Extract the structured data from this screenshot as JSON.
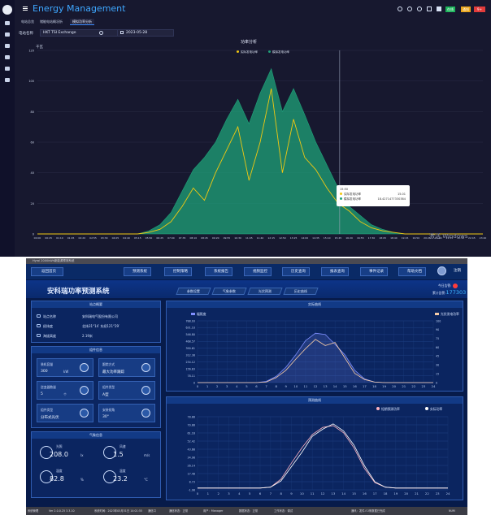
{
  "top": {
    "app_title": "Energy Management",
    "tabs": [
      "电站总览",
      "储能电站概况析",
      "模拟功率分析"
    ],
    "filter_label": "电站名称",
    "station_value": "HKT TSI Exchange",
    "date_value": "2023-05-28",
    "chart_title": "功率分析",
    "y_unit": "千瓦",
    "legend": [
      "实际发电功率",
      "模拟发电功率"
    ],
    "tooltip": {
      "time": "15:50",
      "rows": [
        {
          "label": "实际发电功率",
          "value": "15.01"
        },
        {
          "label": "模拟发电功率",
          "value": "18.4271477330384"
        }
      ]
    },
    "watermark": "激活 Windows",
    "badges": [
      "在线",
      "通知",
      "9+"
    ]
  },
  "chart_data": [
    {
      "type": "area",
      "title": "功率分析",
      "xlabel": "",
      "ylabel": "千瓦",
      "ylim": [
        0,
        120
      ],
      "yticks": [
        "120",
        "100",
        "80",
        "60",
        "40",
        "20",
        "0"
      ],
      "x": [
        "00:00",
        "00:25",
        "01:10",
        "01:45",
        "02:20",
        "02:55",
        "03:30",
        "04:05",
        "04:40",
        "05:15",
        "05:50",
        "06:25",
        "07:00",
        "07:35",
        "08:10",
        "08:45",
        "09:20",
        "09:55",
        "10:30",
        "11:05",
        "11:40",
        "12:15",
        "12:50",
        "13:25",
        "14:00",
        "14:35",
        "15:10",
        "15:45",
        "16:20",
        "16:55",
        "17:30",
        "18:05",
        "18:40",
        "19:15",
        "19:50",
        "20:25",
        "21:00",
        "21:35",
        "22:10",
        "22:45",
        "23:20"
      ],
      "series": [
        {
          "name": "实际发电功率",
          "color": "#f2c811",
          "values": [
            0,
            0,
            0,
            0,
            0,
            0,
            0,
            0,
            0,
            0,
            1,
            3,
            8,
            18,
            30,
            22,
            40,
            55,
            70,
            35,
            60,
            95,
            40,
            75,
            50,
            42,
            30,
            20,
            15,
            8,
            4,
            2,
            1,
            0,
            0,
            0,
            0,
            0,
            0,
            0,
            0
          ]
        },
        {
          "name": "模拟发电功率",
          "color": "#1fa37a",
          "values": [
            0,
            0,
            0,
            0,
            0,
            0,
            0,
            0,
            0,
            0,
            2,
            6,
            14,
            28,
            42,
            50,
            60,
            75,
            88,
            72,
            92,
            108,
            80,
            95,
            78,
            60,
            45,
            30,
            18,
            12,
            6,
            3,
            1,
            0,
            0,
            0,
            0,
            0,
            0,
            0,
            0
          ]
        }
      ],
      "tooltip_x": "15:50"
    },
    {
      "type": "line",
      "title": "实际曲线",
      "x": [
        "0",
        "1",
        "2",
        "3",
        "4",
        "5",
        "6",
        "7",
        "8",
        "9",
        "10",
        "11",
        "12",
        "13",
        "14",
        "15",
        "16",
        "17",
        "18",
        "19",
        "20",
        "21",
        "22",
        "23",
        "24"
      ],
      "yticks_left": [
        "788.93",
        "631.10",
        "546.80",
        "468.57",
        "390.61",
        "312.38",
        "234.12",
        "156.83",
        "78.11",
        "0"
      ],
      "yticks_right": [
        "100",
        "90",
        "75",
        "60",
        "45",
        "30",
        "15",
        "0"
      ],
      "ylim": [
        0,
        100
      ],
      "legend": [
        "辐照度",
        "光伏发电功率"
      ],
      "series": [
        {
          "name": "辐照度",
          "color": "#7f8fff",
          "values": [
            0,
            0,
            0,
            0,
            0,
            0,
            0,
            2,
            10,
            25,
            45,
            68,
            80,
            78,
            62,
            45,
            20,
            6,
            1,
            0,
            0,
            0,
            0,
            0,
            0
          ]
        },
        {
          "name": "光伏发电功率",
          "color": "#f5cba7",
          "values": [
            0,
            0,
            0,
            0,
            0,
            0,
            0,
            1,
            8,
            20,
            38,
            55,
            70,
            60,
            65,
            40,
            15,
            5,
            1,
            0,
            0,
            0,
            0,
            0,
            0
          ]
        }
      ]
    },
    {
      "type": "line",
      "title": "预测曲线",
      "x": [
        "0",
        "1",
        "2",
        "3",
        "4",
        "5",
        "6",
        "7",
        "8",
        "9",
        "10",
        "11",
        "12",
        "13",
        "14",
        "15",
        "16",
        "17",
        "18",
        "19",
        "20",
        "21",
        "22",
        "23",
        "24"
      ],
      "yticks": [
        "78.88",
        "70.88",
        "61.16",
        "52.42",
        "43.66",
        "34.98",
        "26.14",
        "17.48",
        "8.73",
        "-1.98"
      ],
      "ylim": [
        -2,
        80
      ],
      "legend": [
        "短期预测功率",
        "实际功率"
      ],
      "series": [
        {
          "name": "短期预测功率",
          "color": "#ffb3c1",
          "values": [
            0,
            0,
            0,
            0,
            0,
            0,
            0,
            1,
            10,
            28,
            45,
            60,
            68,
            70,
            62,
            45,
            22,
            6,
            1,
            0,
            0,
            0,
            0,
            0,
            0
          ]
        },
        {
          "name": "实际功率",
          "color": "#ffffff",
          "values": [
            0,
            0,
            0,
            0,
            0,
            0,
            0,
            1,
            8,
            24,
            40,
            58,
            66,
            72,
            64,
            48,
            25,
            7,
            1,
            0,
            0,
            0,
            0,
            0,
            0
          ]
        }
      ]
    }
  ],
  "bottom": {
    "window_title": "Hyrol 2000kWh新能源预测系统",
    "home_btn": "返回首页",
    "menus": [
      "预测系统",
      "控制策略",
      "系统报告",
      "视频监控",
      "历史查询",
      "报表查询",
      "事件记录",
      "帮助文档"
    ],
    "logout": "注销",
    "system_title": "安科瑞功率预测系统",
    "subtabs": [
      "参数设置",
      "气象参数",
      "光伏预测",
      "历史曲线"
    ],
    "alarm_label": "今日告警:",
    "total_label": "累计告警:",
    "total_value": "177303",
    "overview_title": "站点概要",
    "overview": [
      {
        "label": "站点名称",
        "value": "安科瑞电气股份有限公司"
      },
      {
        "label": "经纬度",
        "value": "北纬31°14′ 东经121°29′"
      },
      {
        "label": "海拔高度",
        "value": "2.19米"
      }
    ],
    "component_title": "组件信息",
    "cards": [
      {
        "label": "装机容量",
        "value": "300",
        "unit": "kW"
      },
      {
        "label": "跟踪方式",
        "value": "最大功率跟踪",
        "unit": ""
      },
      {
        "label": "逆变器数量",
        "value": "5",
        "unit": "个"
      },
      {
        "label": "组件类型",
        "value": "A型",
        "unit": ""
      },
      {
        "label": "组件类型",
        "value": "分布式光伏",
        "unit": ""
      },
      {
        "label": "安装倾角",
        "value": "30°",
        "unit": ""
      }
    ],
    "weather_title": "气象信息",
    "weather": [
      {
        "label": "光照",
        "value": "208.0",
        "unit": "lx"
      },
      {
        "label": "风速",
        "value": "1.5",
        "unit": "m/s"
      },
      {
        "label": "湿度",
        "value": "82.8",
        "unit": "%"
      },
      {
        "label": "温度",
        "value": "23.2",
        "unit": "°C"
      }
    ],
    "status": [
      "系统管理",
      "Ver 2.0.0.25 3.3.10",
      "系统时间：2023年05月31日 14:01:55",
      "通信口",
      "通信状态：正常",
      "用户：Manager",
      "数据状态：正常",
      "工作状态：调试",
      "通讯：发件人3条数据已完成",
      "NUM"
    ]
  }
}
